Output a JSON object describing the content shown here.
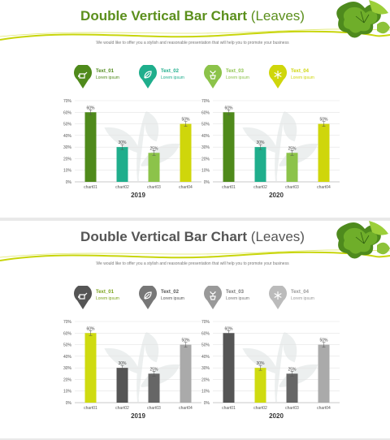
{
  "slides": [
    {
      "title_main": "Double Vertical Bar Chart",
      "title_light": "(Leaves)",
      "title_color": "#5b8f1c",
      "subtitle": "We would like to offer you a stylish and reasonable presentation that will help you to promote your business",
      "legend": [
        {
          "label": "Text_01",
          "sub": "Lorem ipsum",
          "color": "#4f8a1b",
          "text_color": "#4f8a1b",
          "icon": "watering-can-icon"
        },
        {
          "label": "Text_02",
          "sub": "Lorem ipsum",
          "color": "#1fae8c",
          "text_color": "#1fae8c",
          "icon": "leaf-icon"
        },
        {
          "label": "Text_03",
          "sub": "Lorem ipsum",
          "color": "#8cc34a",
          "text_color": "#8cc34a",
          "icon": "plant-pot-icon"
        },
        {
          "label": "Text_04",
          "sub": "Lorem ipsum",
          "color": "#cfd60b",
          "text_color": "#cfd60b",
          "icon": "snowflake-icon"
        }
      ]
    },
    {
      "title_main": "Double Vertical Bar Chart",
      "title_light": "(Leaves)",
      "title_color": "#555555",
      "subtitle": "We would like to offer you a stylish and reasonable presentation that will help you to promote your business",
      "legend": [
        {
          "label": "Text_01",
          "sub": "Lorem ipsum",
          "color": "#555555",
          "text_color": "#7aa21a",
          "icon": "watering-can-icon"
        },
        {
          "label": "Text_02",
          "sub": "Lorem ipsum",
          "color": "#777777",
          "text_color": "#555555",
          "icon": "leaf-icon"
        },
        {
          "label": "Text_03",
          "sub": "Lorem ipsum",
          "color": "#999999",
          "text_color": "#777777",
          "icon": "plant-pot-icon"
        },
        {
          "label": "Text_04",
          "sub": "Lorem ipsum",
          "color": "#bbbbbb",
          "text_color": "#999999",
          "icon": "snowflake-icon"
        }
      ]
    }
  ],
  "chart_data": [
    {
      "type": "bar",
      "slide": 1,
      "xlabel": "2019",
      "categories": [
        "chart01",
        "chart02",
        "chart03",
        "chart04"
      ],
      "values": [
        60,
        30,
        25,
        50
      ],
      "labels": [
        "60%",
        "30%",
        "25%",
        "50%"
      ],
      "colors": [
        "#4f8a1b",
        "#1fae8c",
        "#8cc34a",
        "#cfd60b"
      ],
      "ylim": [
        0,
        70
      ],
      "yticks": [
        "0%",
        "10%",
        "20%",
        "30%",
        "40%",
        "50%",
        "60%",
        "70%"
      ],
      "grid": true
    },
    {
      "type": "bar",
      "slide": 1,
      "xlabel": "2020",
      "categories": [
        "chart01",
        "chart02",
        "chart03",
        "chart04"
      ],
      "values": [
        60,
        30,
        25,
        50
      ],
      "labels": [
        "60%",
        "30%",
        "25%",
        "50%"
      ],
      "colors": [
        "#4f8a1b",
        "#1fae8c",
        "#8cc34a",
        "#cfd60b"
      ],
      "ylim": [
        0,
        70
      ],
      "yticks": [
        "0%",
        "10%",
        "20%",
        "30%",
        "40%",
        "50%",
        "60%",
        "70%"
      ],
      "grid": true
    },
    {
      "type": "bar",
      "slide": 2,
      "xlabel": "2019",
      "categories": [
        "chart01",
        "chart02",
        "chart03",
        "chart04"
      ],
      "values": [
        60,
        30,
        25,
        50
      ],
      "labels": [
        "60%",
        "30%",
        "25%",
        "50%"
      ],
      "colors": [
        "#cfdb10",
        "#555555",
        "#666666",
        "#aaaaaa"
      ],
      "ylim": [
        0,
        70
      ],
      "yticks": [
        "0%",
        "10%",
        "20%",
        "30%",
        "40%",
        "50%",
        "60%",
        "70%"
      ],
      "grid": true
    },
    {
      "type": "bar",
      "slide": 2,
      "xlabel": "2020",
      "categories": [
        "chart01",
        "chart02",
        "chart03",
        "chart04"
      ],
      "values": [
        60,
        30,
        25,
        50
      ],
      "labels": [
        "60%",
        "30%",
        "25%",
        "50%"
      ],
      "colors": [
        "#555555",
        "#cfdb10",
        "#666666",
        "#aaaaaa"
      ],
      "ylim": [
        0,
        70
      ],
      "yticks": [
        "0%",
        "10%",
        "20%",
        "30%",
        "40%",
        "50%",
        "60%",
        "70%"
      ],
      "grid": true
    }
  ]
}
